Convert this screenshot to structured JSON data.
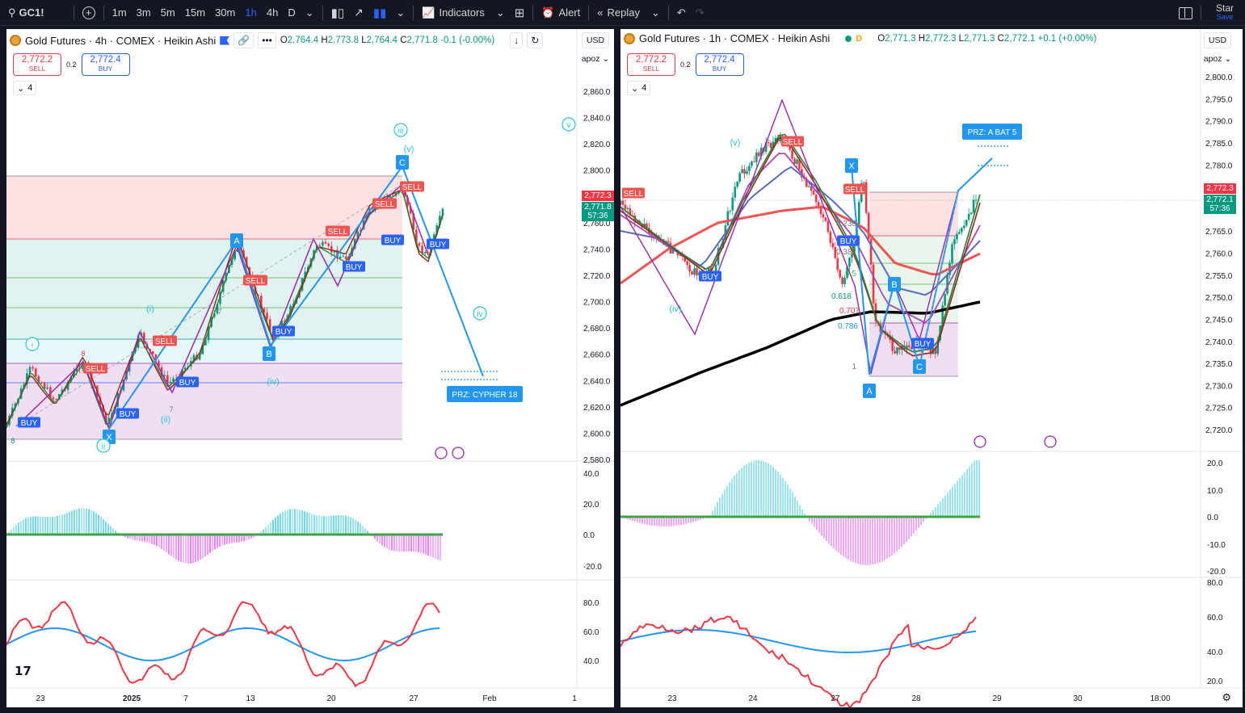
{
  "toolbar": {
    "symbol": "GC1!",
    "intervals": [
      "1m",
      "3m",
      "5m",
      "15m",
      "30m",
      "1h",
      "4h",
      "D"
    ],
    "active_interval": "1h",
    "indicators_label": "Indicators",
    "alert_label": "Alert",
    "replay_label": "Replay",
    "star_label": "Star",
    "save_label": "Save",
    "accent_color": "#2962ff"
  },
  "left_chart": {
    "title": "Gold Futures · 4h · COMEX · Heikin Ashi",
    "ohlc": {
      "o": "2,764.4",
      "h": "2,773.8",
      "l": "2,764.4",
      "c": "2,771.8",
      "chg": "-0.1 (-0.00%)"
    },
    "sell_price": "2,772.2",
    "sell_label": "SELL",
    "buy_price": "2,772.4",
    "buy_label": "BUY",
    "spread": "0.2",
    "collapsed_count": "4",
    "currency": "USD",
    "scale_mode": "apoz",
    "price_ticks": [
      "2,860.0",
      "2,840.0",
      "2,820.0",
      "2,800.0",
      "2,780.0",
      "2,760.0",
      "2,740.0",
      "2,720.0",
      "2,700.0",
      "2,680.0",
      "2,660.0",
      "2,640.0",
      "2,620.0",
      "2,600.0",
      "2,580.0"
    ],
    "price_tag_red": "2,772.3",
    "price_tag_green": "2,771.8",
    "countdown": "57:36",
    "osc_ticks": [
      "40.0",
      "20.0",
      "0.0",
      "-20.0"
    ],
    "rsi_ticks": [
      "80.0",
      "60.0",
      "40.0"
    ],
    "dates": [
      "23",
      "2025",
      "7",
      "13",
      "20",
      "27",
      "Feb",
      "1"
    ],
    "labels": {
      "sell": "SELL",
      "buy": "BUY",
      "X": "X",
      "A": "A",
      "B": "B",
      "C": "C",
      "wave_i": "i",
      "wave_ii": "ii",
      "wave_iii": "iii",
      "wave_iv_circ": "iv",
      "wave_v_circ": "v",
      "sub_i": "(i)",
      "sub_ii": "(ii)",
      "sub_iv": "(iv)",
      "sub_v": "(v)",
      "prz": "PRZ: CYPHER 18",
      "n7": "7",
      "n8": "8"
    }
  },
  "right_chart": {
    "title": "Gold Futures · 1h · COMEX · Heikin Ashi",
    "ohlc": {
      "o": "2,771.3",
      "h": "2,772.3",
      "l": "2,771.3",
      "c": "2,772.1",
      "chg": "+0.1 (+0.00%)"
    },
    "d_badge": "D",
    "sell_price": "2,772.2",
    "sell_label": "SELL",
    "buy_price": "2,772.4",
    "buy_label": "BUY",
    "spread": "0.2",
    "collapsed_count": "4",
    "currency": "USD",
    "scale_mode": "apoz",
    "price_ticks": [
      "2,800.0",
      "2,795.0",
      "2,790.0",
      "2,785.0",
      "2,780.0",
      "2,775.0",
      "2,770.0",
      "2,765.0",
      "2,760.0",
      "2,755.0",
      "2,750.0",
      "2,745.0",
      "2,740.0",
      "2,735.0",
      "2,730.0",
      "2,725.0",
      "2,720.0"
    ],
    "price_tag_red": "2,772.3",
    "price_tag_green": "2,772.1",
    "countdown": "57:36",
    "osc_ticks": [
      "20.0",
      "10.0",
      "0.0",
      "-10.0",
      "-20.0"
    ],
    "rsi_ticks": [
      "80.0",
      "60.0",
      "40.0",
      "20.0"
    ],
    "dates": [
      "23",
      "24",
      "27",
      "28",
      "29",
      "30",
      "18:00"
    ],
    "labels": {
      "sell": "SELL",
      "buy": "BUY",
      "X": "X",
      "A": "A",
      "B": "B",
      "C": "C",
      "sub_v": "(v)",
      "sub_iv": "(iv)",
      "prz": "PRZ: A BAT 5",
      "fib_0618": "0.618",
      "fib_0707": "0.707",
      "fib_0786": "0.786",
      "fib_05": "0.5",
      "fib_1": "1",
      "fib_0382": "0.382",
      "fib_0236": "0.236"
    }
  },
  "colors": {
    "up": "#089981",
    "down": "#f23645",
    "blue": "#2962ff",
    "teal": "#26c6da",
    "purple": "#9c27b0",
    "sell_red": "#f05350",
    "buy_blue": "#2962ff"
  }
}
